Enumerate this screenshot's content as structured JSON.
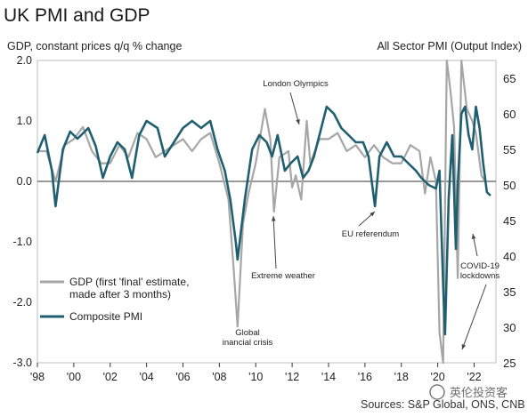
{
  "chart_data": {
    "type": "line",
    "title": "UK PMI and GDP",
    "ylabel_left": "GDP, constant prices q/q % change",
    "ylabel_right": "All Sector PMI (Output Index)",
    "source": "Sources: S&P Global, ONS, CNB",
    "watermark": "英伦投资客",
    "ylim_left": [
      -3.0,
      2.0
    ],
    "ylim_right": [
      25,
      67.5
    ],
    "left_ticks": [
      "2.0",
      "1.0",
      "0.0",
      "-1.0",
      "-2.0",
      "-3.0"
    ],
    "right_ticks": [
      "65",
      "60",
      "55",
      "50",
      "45",
      "40",
      "35",
      "30",
      "25"
    ],
    "xlim": [
      1998,
      2023.2
    ],
    "x_ticks": [
      {
        "x": 1998,
        "label": "'98"
      },
      {
        "x": 2000,
        "label": "'00"
      },
      {
        "x": 2002,
        "label": "'02"
      },
      {
        "x": 2004,
        "label": "'04"
      },
      {
        "x": 2006,
        "label": "'06"
      },
      {
        "x": 2008,
        "label": "'08"
      },
      {
        "x": 2010,
        "label": "'10"
      },
      {
        "x": 2012,
        "label": "'12"
      },
      {
        "x": 2014,
        "label": "'14"
      },
      {
        "x": 2016,
        "label": "'16"
      },
      {
        "x": 2018,
        "label": "'18"
      },
      {
        "x": 2020,
        "label": "'20"
      },
      {
        "x": 2022,
        "label": "'22"
      }
    ],
    "series": [
      {
        "name": "GDP (first 'final' estimate, made after 3 months)",
        "axis": "left",
        "color": "#a6a6a6",
        "points": [
          [
            1998.0,
            0.5
          ],
          [
            1998.5,
            0.5
          ],
          [
            1999.0,
            0.0
          ],
          [
            1999.5,
            0.6
          ],
          [
            2000.0,
            0.7
          ],
          [
            2000.5,
            0.9
          ],
          [
            2001.0,
            0.5
          ],
          [
            2001.5,
            0.3
          ],
          [
            2002.0,
            0.3
          ],
          [
            2002.5,
            0.6
          ],
          [
            2003.0,
            0.4
          ],
          [
            2003.5,
            0.8
          ],
          [
            2004.0,
            0.7
          ],
          [
            2004.5,
            0.4
          ],
          [
            2005.0,
            0.5
          ],
          [
            2005.5,
            0.6
          ],
          [
            2006.0,
            0.7
          ],
          [
            2006.5,
            0.5
          ],
          [
            2007.0,
            0.7
          ],
          [
            2007.5,
            0.8
          ],
          [
            2008.0,
            0.3
          ],
          [
            2008.5,
            -0.3
          ],
          [
            2008.8,
            -1.5
          ],
          [
            2009.0,
            -2.4
          ],
          [
            2009.3,
            -0.7
          ],
          [
            2009.6,
            -0.2
          ],
          [
            2010.0,
            0.3
          ],
          [
            2010.5,
            1.2
          ],
          [
            2010.8,
            0.7
          ],
          [
            2011.0,
            -0.5
          ],
          [
            2011.3,
            0.4
          ],
          [
            2011.8,
            0.5
          ],
          [
            2012.0,
            -0.1
          ],
          [
            2012.2,
            0.1
          ],
          [
            2012.5,
            -0.3
          ],
          [
            2012.8,
            1.0
          ],
          [
            2013.0,
            0.3
          ],
          [
            2013.5,
            0.7
          ],
          [
            2014.0,
            0.7
          ],
          [
            2014.5,
            0.8
          ],
          [
            2015.0,
            0.5
          ],
          [
            2015.5,
            0.6
          ],
          [
            2016.0,
            0.4
          ],
          [
            2016.5,
            0.6
          ],
          [
            2017.0,
            0.4
          ],
          [
            2017.5,
            0.3
          ],
          [
            2018.0,
            0.3
          ],
          [
            2018.5,
            0.6
          ],
          [
            2019.0,
            0.5
          ],
          [
            2019.3,
            -0.2
          ],
          [
            2019.6,
            0.4
          ],
          [
            2019.9,
            0.0
          ],
          [
            2020.1,
            -2.5
          ],
          [
            2020.3,
            -3.0
          ],
          [
            2020.5,
            2.0
          ],
          [
            2020.7,
            1.5
          ],
          [
            2020.9,
            0.9
          ],
          [
            2021.1,
            -1.6
          ],
          [
            2021.3,
            2.0
          ],
          [
            2021.6,
            1.2
          ],
          [
            2021.9,
            1.0
          ],
          [
            2022.1,
            0.8
          ],
          [
            2022.4,
            0.1
          ],
          [
            2022.6,
            0.0
          ]
        ]
      },
      {
        "name": "Composite PMI",
        "axis": "right",
        "color": "#1f5f70",
        "points": [
          [
            1998.0,
            54.5
          ],
          [
            1998.4,
            57
          ],
          [
            1998.8,
            52
          ],
          [
            1999.0,
            47
          ],
          [
            1999.4,
            55
          ],
          [
            1999.8,
            57.5
          ],
          [
            2000.2,
            56.5
          ],
          [
            2000.8,
            58
          ],
          [
            2001.2,
            55.5
          ],
          [
            2001.6,
            51
          ],
          [
            2002.0,
            54
          ],
          [
            2002.4,
            56
          ],
          [
            2002.8,
            55
          ],
          [
            2003.2,
            51
          ],
          [
            2003.6,
            57
          ],
          [
            2004.0,
            59
          ],
          [
            2004.6,
            58
          ],
          [
            2005.0,
            54
          ],
          [
            2005.5,
            56
          ],
          [
            2006.0,
            58
          ],
          [
            2006.5,
            59
          ],
          [
            2007.0,
            58
          ],
          [
            2007.5,
            59
          ],
          [
            2007.9,
            55
          ],
          [
            2008.3,
            52
          ],
          [
            2008.6,
            48
          ],
          [
            2008.9,
            42
          ],
          [
            2009.0,
            39.5
          ],
          [
            2009.4,
            48
          ],
          [
            2009.8,
            55
          ],
          [
            2010.2,
            57
          ],
          [
            2010.6,
            56
          ],
          [
            2010.9,
            54
          ],
          [
            2011.2,
            57
          ],
          [
            2011.6,
            52
          ],
          [
            2011.9,
            53
          ],
          [
            2012.3,
            54
          ],
          [
            2012.6,
            51
          ],
          [
            2012.9,
            52
          ],
          [
            2013.2,
            54
          ],
          [
            2013.6,
            58
          ],
          [
            2013.9,
            61
          ],
          [
            2014.3,
            60
          ],
          [
            2014.7,
            58
          ],
          [
            2015.1,
            57
          ],
          [
            2015.5,
            56
          ],
          [
            2015.9,
            56
          ],
          [
            2016.2,
            54
          ],
          [
            2016.55,
            47
          ],
          [
            2016.8,
            54
          ],
          [
            2017.2,
            56
          ],
          [
            2017.6,
            54
          ],
          [
            2018.0,
            54
          ],
          [
            2018.4,
            53
          ],
          [
            2018.8,
            52
          ],
          [
            2019.1,
            51
          ],
          [
            2019.5,
            50
          ],
          [
            2019.9,
            49.5
          ],
          [
            2020.1,
            52
          ],
          [
            2020.3,
            36
          ],
          [
            2020.4,
            29
          ],
          [
            2020.6,
            48
          ],
          [
            2020.8,
            57
          ],
          [
            2020.9,
            49
          ],
          [
            2021.0,
            41
          ],
          [
            2021.1,
            50
          ],
          [
            2021.3,
            60
          ],
          [
            2021.5,
            61
          ],
          [
            2021.7,
            57
          ],
          [
            2021.9,
            55
          ],
          [
            2022.1,
            61
          ],
          [
            2022.3,
            58
          ],
          [
            2022.5,
            53
          ],
          [
            2022.7,
            49
          ],
          [
            2022.9,
            48.5
          ]
        ]
      }
    ],
    "annotations": [
      {
        "text": "London Olympics",
        "x": 2012.5,
        "y": 0.6,
        "axis": "left"
      },
      {
        "text": "Extreme weather",
        "x": 2010.8,
        "y": -0.6,
        "axis": "left"
      },
      {
        "text": "Global financial crisis",
        "x": 2009.0,
        "y": -2.4,
        "axis": "left"
      },
      {
        "text": "EU referendum",
        "x": 2016.6,
        "y": 47,
        "axis": "right"
      },
      {
        "text": "COVID-19 lockdowns",
        "x": 2021.0,
        "y": 41,
        "axis": "right"
      }
    ],
    "legend": "bottom-left",
    "grid": false
  }
}
